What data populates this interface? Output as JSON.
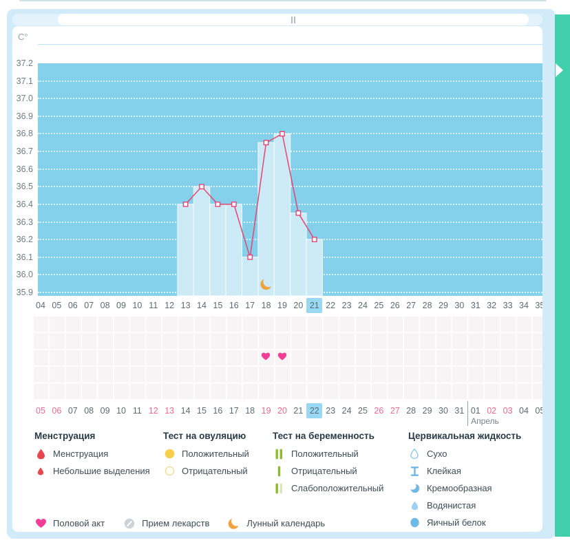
{
  "colors": {
    "plot_bg": "#85d1eb",
    "bar_fill": "#cdeaf7",
    "line": "#e4446f",
    "highlight_cell": "#99d8f2",
    "weekend_text": "#f2688f",
    "teal_panel": "#41cfae",
    "heart": "#f03e97",
    "moon": "#f2a23d",
    "blood_drop": "#e8464e",
    "ovulation_yellow": "#f7ce4d",
    "pregnancy_green": "#8cbb31",
    "cervical_blue": "#6db8e6"
  },
  "chart_data": {
    "type": "line",
    "title": "",
    "unit": "C°",
    "ylabel": "C°",
    "ylim": [
      35.9,
      37.2
    ],
    "y_ticks": [
      "37.2",
      "37.1",
      "37.0",
      "36.9",
      "36.8",
      "36.7",
      "36.6",
      "36.5",
      "36.4",
      "36.3",
      "36.2",
      "36.1",
      "36.0",
      "35.9"
    ],
    "cycle_days": [
      "04",
      "05",
      "06",
      "07",
      "08",
      "09",
      "10",
      "11",
      "12",
      "13",
      "14",
      "15",
      "16",
      "17",
      "18",
      "19",
      "20",
      "21",
      "22",
      "23",
      "24",
      "25",
      "26",
      "27",
      "28",
      "29",
      "30",
      "31",
      "32",
      "33",
      "34",
      "35"
    ],
    "series": [
      {
        "name": "basal-temperature",
        "points": [
          {
            "day": 13,
            "temp": 36.4
          },
          {
            "day": 14,
            "temp": 36.5
          },
          {
            "day": 15,
            "temp": 36.4
          },
          {
            "day": 16,
            "temp": 36.4
          },
          {
            "day": 17,
            "temp": 36.1
          },
          {
            "day": 18,
            "temp": 36.75
          },
          {
            "day": 19,
            "temp": 36.8
          },
          {
            "day": 20,
            "temp": 36.35
          },
          {
            "day": 21,
            "temp": 36.2
          }
        ]
      }
    ],
    "bar_days": [
      13,
      14,
      15,
      16,
      17,
      18,
      19,
      20,
      21
    ],
    "highlighted_cycle_day": "21",
    "moon_day": 18,
    "intercourse_days": [
      18,
      19
    ],
    "grid": "dotted-horizontal"
  },
  "date_row": {
    "month_label": "Апрель",
    "highlighted_date_index": 17,
    "dates": [
      {
        "label": "05",
        "weekend": true
      },
      {
        "label": "06",
        "weekend": true
      },
      {
        "label": "07",
        "weekend": false
      },
      {
        "label": "08",
        "weekend": false
      },
      {
        "label": "09",
        "weekend": false
      },
      {
        "label": "10",
        "weekend": false
      },
      {
        "label": "11",
        "weekend": false
      },
      {
        "label": "12",
        "weekend": true
      },
      {
        "label": "13",
        "weekend": true
      },
      {
        "label": "14",
        "weekend": false
      },
      {
        "label": "15",
        "weekend": false
      },
      {
        "label": "16",
        "weekend": false
      },
      {
        "label": "17",
        "weekend": false
      },
      {
        "label": "18",
        "weekend": false
      },
      {
        "label": "19",
        "weekend": true
      },
      {
        "label": "20",
        "weekend": true
      },
      {
        "label": "21",
        "weekend": false
      },
      {
        "label": "22",
        "weekend": false,
        "highlight": true
      },
      {
        "label": "23",
        "weekend": false
      },
      {
        "label": "24",
        "weekend": false
      },
      {
        "label": "25",
        "weekend": false
      },
      {
        "label": "26",
        "weekend": true
      },
      {
        "label": "27",
        "weekend": true
      },
      {
        "label": "28",
        "weekend": false
      },
      {
        "label": "29",
        "weekend": false
      },
      {
        "label": "30",
        "weekend": false
      },
      {
        "label": "31",
        "weekend": false
      },
      {
        "label": "01",
        "weekend": false,
        "divider_before": true
      },
      {
        "label": "02",
        "weekend": true
      },
      {
        "label": "03",
        "weekend": true
      },
      {
        "label": "04",
        "weekend": false
      },
      {
        "label": "05",
        "weekend": false
      }
    ]
  },
  "legend": {
    "sections": [
      {
        "title": "Менструация",
        "items": [
          {
            "icon": "blood-drop-large",
            "label": "Менструация"
          },
          {
            "icon": "blood-drop-small",
            "label": "Небольшие выделения"
          }
        ]
      },
      {
        "title": "Тест на овуляцию",
        "items": [
          {
            "icon": "circle-filled-yellow",
            "label": "Положительный"
          },
          {
            "icon": "circle-outline-yellow",
            "label": "Отрицательный"
          }
        ]
      },
      {
        "title": "Тест на беременность",
        "items": [
          {
            "icon": "two-bars-green",
            "label": "Положительный"
          },
          {
            "icon": "one-bar-green",
            "label": "Отрицательный"
          },
          {
            "icon": "two-bars-green-faded",
            "label": "Слабоположительный"
          }
        ]
      },
      {
        "title": "Цервикальная жидкость",
        "items": [
          {
            "icon": "drop-outline-blue",
            "label": "Сухо"
          },
          {
            "icon": "hourglass-blue",
            "label": "Клейкая"
          },
          {
            "icon": "crescent-blue",
            "label": "Кремообразная"
          },
          {
            "icon": "drop-light-blue",
            "label": "Водянистая"
          },
          {
            "icon": "circle-filled-blue",
            "label": "Яичный белок"
          }
        ]
      }
    ],
    "footer": [
      {
        "icon": "heart-pink",
        "label": "Половой акт"
      },
      {
        "icon": "pill-gray",
        "label": "Прием лекарств"
      },
      {
        "icon": "moon-orange",
        "label": "Лунный календарь"
      }
    ]
  }
}
